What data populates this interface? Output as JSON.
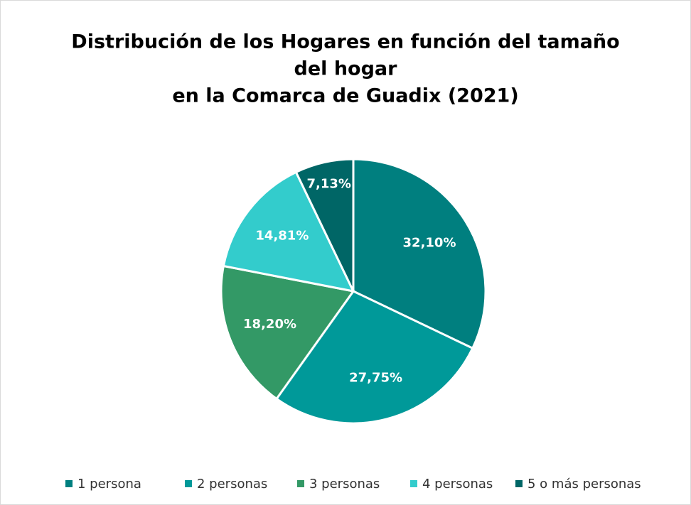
{
  "chart_data": {
    "type": "pie",
    "title": [
      "Distribución de los Hogares en función del tamaño",
      "del hogar",
      "en la Comarca de Guadix (2021)"
    ],
    "categories": [
      "1 persona",
      "2 personas",
      "3 personas",
      "4 personas",
      "5 o más personas"
    ],
    "values": [
      32.1,
      27.75,
      18.2,
      14.81,
      7.13
    ],
    "value_labels": [
      "32,10%",
      "27,75%",
      "18,20%",
      "14,81%",
      "7,13%"
    ],
    "colors": [
      "#007f7f",
      "#009999",
      "#339966",
      "#33cccc",
      "#006666"
    ],
    "legend": "bottom"
  }
}
